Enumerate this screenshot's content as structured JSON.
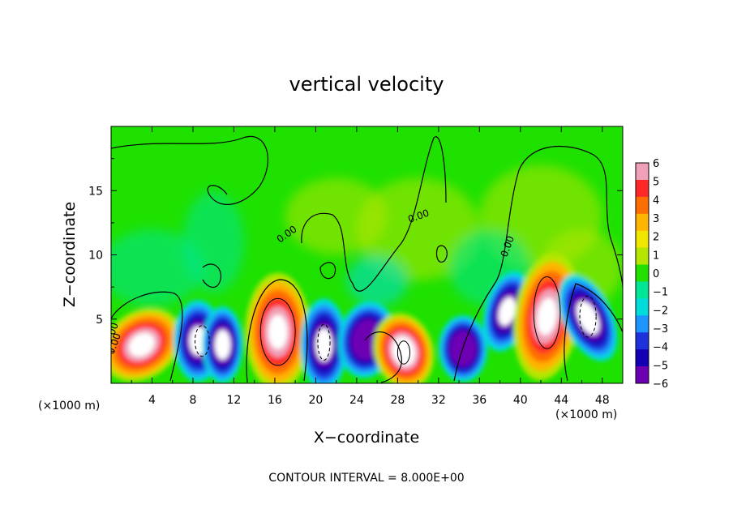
{
  "chart_data": {
    "type": "heatmap",
    "title": "vertical velocity",
    "xlabel": "X−coordinate",
    "ylabel": "Z−coordinate",
    "x_unit_left": "(×1000 m)",
    "x_unit_right": "(×1000 m)",
    "footer": "CONTOUR INTERVAL = 8.000E+00",
    "xlim": [
      0,
      50
    ],
    "ylim": [
      0,
      20
    ],
    "xticks": [
      4,
      8,
      12,
      16,
      20,
      24,
      28,
      32,
      36,
      40,
      44,
      48
    ],
    "xtick_labels": [
      "4",
      "8",
      "12",
      "16",
      "20",
      "24",
      "28",
      "32",
      "36",
      "40",
      "44",
      "48"
    ],
    "yticks": [
      5,
      10,
      15
    ],
    "ytick_labels": [
      "5",
      "10",
      "15"
    ],
    "colorbar": {
      "min": -6,
      "max": 6,
      "tick_labels": [
        "6",
        "5",
        "4",
        "3",
        "2",
        "1",
        "0",
        "−1",
        "−2",
        "−3",
        "−4",
        "−5",
        "−6"
      ],
      "colors": [
        "#f0a0b8",
        "#ff2828",
        "#ff6e00",
        "#ffb400",
        "#f0e600",
        "#b4e600",
        "#22e000",
        "#00e696",
        "#00dcdc",
        "#1e96ff",
        "#1e32dc",
        "#1400b4",
        "#6e00b4"
      ]
    },
    "contour_labels": [
      "0.00",
      "0.00",
      "0.00",
      "0.00",
      "0.00"
    ],
    "features": [
      {
        "x": 3.0,
        "z": 3.0,
        "w": 14,
        "kind": "updraft"
      },
      {
        "x": 8.5,
        "z": 3.3,
        "w": -12,
        "kind": "downdraft"
      },
      {
        "x": 10.9,
        "z": 3.0,
        "w": -10,
        "kind": "downdraft"
      },
      {
        "x": 16.3,
        "z": 4.0,
        "w": 16,
        "kind": "updraft"
      },
      {
        "x": 20.8,
        "z": 3.0,
        "w": -12,
        "kind": "downdraft"
      },
      {
        "x": 25.0,
        "z": 3.4,
        "w": -8,
        "kind": "downdraft"
      },
      {
        "x": 28.6,
        "z": 2.5,
        "w": 10,
        "kind": "updraft"
      },
      {
        "x": 34.4,
        "z": 2.7,
        "w": -8,
        "kind": "downdraft"
      },
      {
        "x": 38.7,
        "z": 5.6,
        "w": -12,
        "kind": "downdraft"
      },
      {
        "x": 42.6,
        "z": 5.2,
        "w": 16,
        "kind": "updraft"
      },
      {
        "x": 46.6,
        "z": 5.1,
        "w": -10,
        "kind": "downdraft"
      }
    ]
  }
}
